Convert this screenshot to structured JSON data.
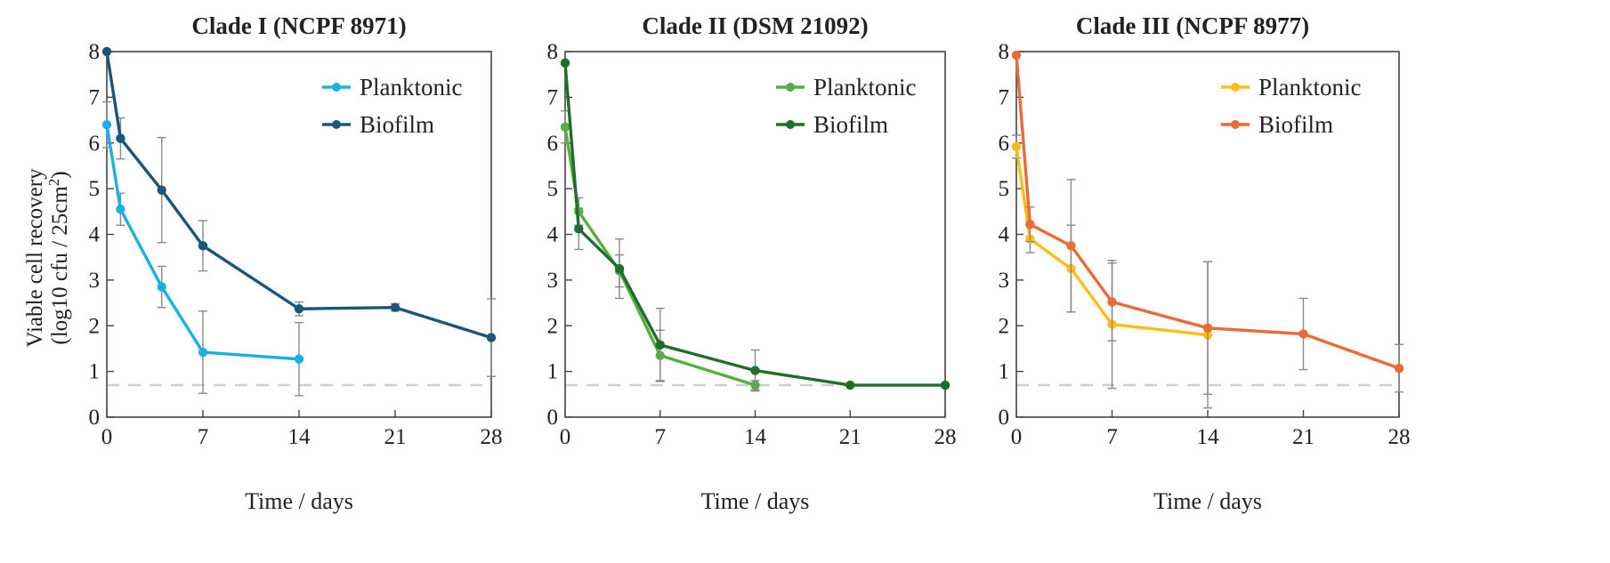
{
  "shared": {
    "xlabel": "Time / days",
    "ylabel_line1": "Viable cell recovery",
    "ylabel_line2": "(log10 cfu / 25cm",
    "ylabel_sup": "2",
    "ylabel_close": ")",
    "xticks": [
      "0",
      "7",
      "14",
      "21",
      "28"
    ],
    "yticks": [
      "0",
      "1",
      "2",
      "3",
      "4",
      "5",
      "6",
      "7",
      "8"
    ]
  },
  "chart_data": [
    {
      "type": "line",
      "title": "Clade I (NCPF 8971)",
      "xlim": [
        0,
        28
      ],
      "ylim": [
        0,
        8
      ],
      "detection_limit": 0.7,
      "legend_position": "top-right",
      "series": [
        {
          "name": "Planktonic",
          "color": "#1ab0e6",
          "x": [
            0,
            1,
            4,
            7,
            14
          ],
          "y": [
            6.4,
            4.55,
            2.85,
            1.42,
            1.27
          ],
          "err": [
            0.5,
            0.35,
            0.45,
            0.9,
            0.8
          ]
        },
        {
          "name": "Biofilm",
          "color": "#1b557c",
          "x": [
            0,
            1,
            4,
            7,
            14,
            21,
            28
          ],
          "y": [
            8.0,
            6.1,
            4.97,
            3.75,
            2.37,
            2.4,
            1.74
          ],
          "err": [
            0.0,
            0.45,
            1.15,
            0.55,
            0.15,
            0.08,
            0.85
          ]
        }
      ]
    },
    {
      "type": "line",
      "title": "Clade II (DSM 21092)",
      "xlim": [
        0,
        28
      ],
      "ylim": [
        0,
        8
      ],
      "detection_limit": 0.7,
      "legend_position": "top-right",
      "series": [
        {
          "name": "Planktonic",
          "color": "#55b040",
          "x": [
            0,
            1,
            4,
            7,
            14
          ],
          "y": [
            6.35,
            4.5,
            3.2,
            1.35,
            0.7
          ],
          "err": [
            0.35,
            0.3,
            0.35,
            0.55,
            0.1
          ]
        },
        {
          "name": "Biofilm",
          "color": "#1f6e2c",
          "x": [
            0,
            1,
            4,
            7,
            14,
            21,
            28
          ],
          "y": [
            7.75,
            4.12,
            3.25,
            1.58,
            1.02,
            0.7,
            0.7
          ],
          "err": [
            0.0,
            0.45,
            0.65,
            0.8,
            0.45,
            0.02,
            0.02
          ]
        }
      ]
    },
    {
      "type": "line",
      "title": "Clade III (NCPF 8977)",
      "xlim": [
        0,
        28
      ],
      "ylim": [
        0,
        8
      ],
      "detection_limit": 0.7,
      "legend_position": "top-right",
      "series": [
        {
          "name": "Planktonic",
          "color": "#ffbd16",
          "x": [
            0,
            1,
            4,
            7,
            14
          ],
          "y": [
            5.92,
            3.9,
            3.25,
            2.03,
            1.8
          ],
          "err": [
            0.25,
            0.3,
            0.95,
            1.4,
            1.6
          ]
        },
        {
          "name": "Biofilm",
          "color": "#ec6a35",
          "x": [
            0,
            1,
            4,
            7,
            14,
            21,
            28
          ],
          "y": [
            7.92,
            4.22,
            3.75,
            2.52,
            1.95,
            1.82,
            1.07
          ],
          "err": [
            0.0,
            0.38,
            1.45,
            0.85,
            1.45,
            0.78,
            0.52
          ]
        }
      ]
    }
  ]
}
